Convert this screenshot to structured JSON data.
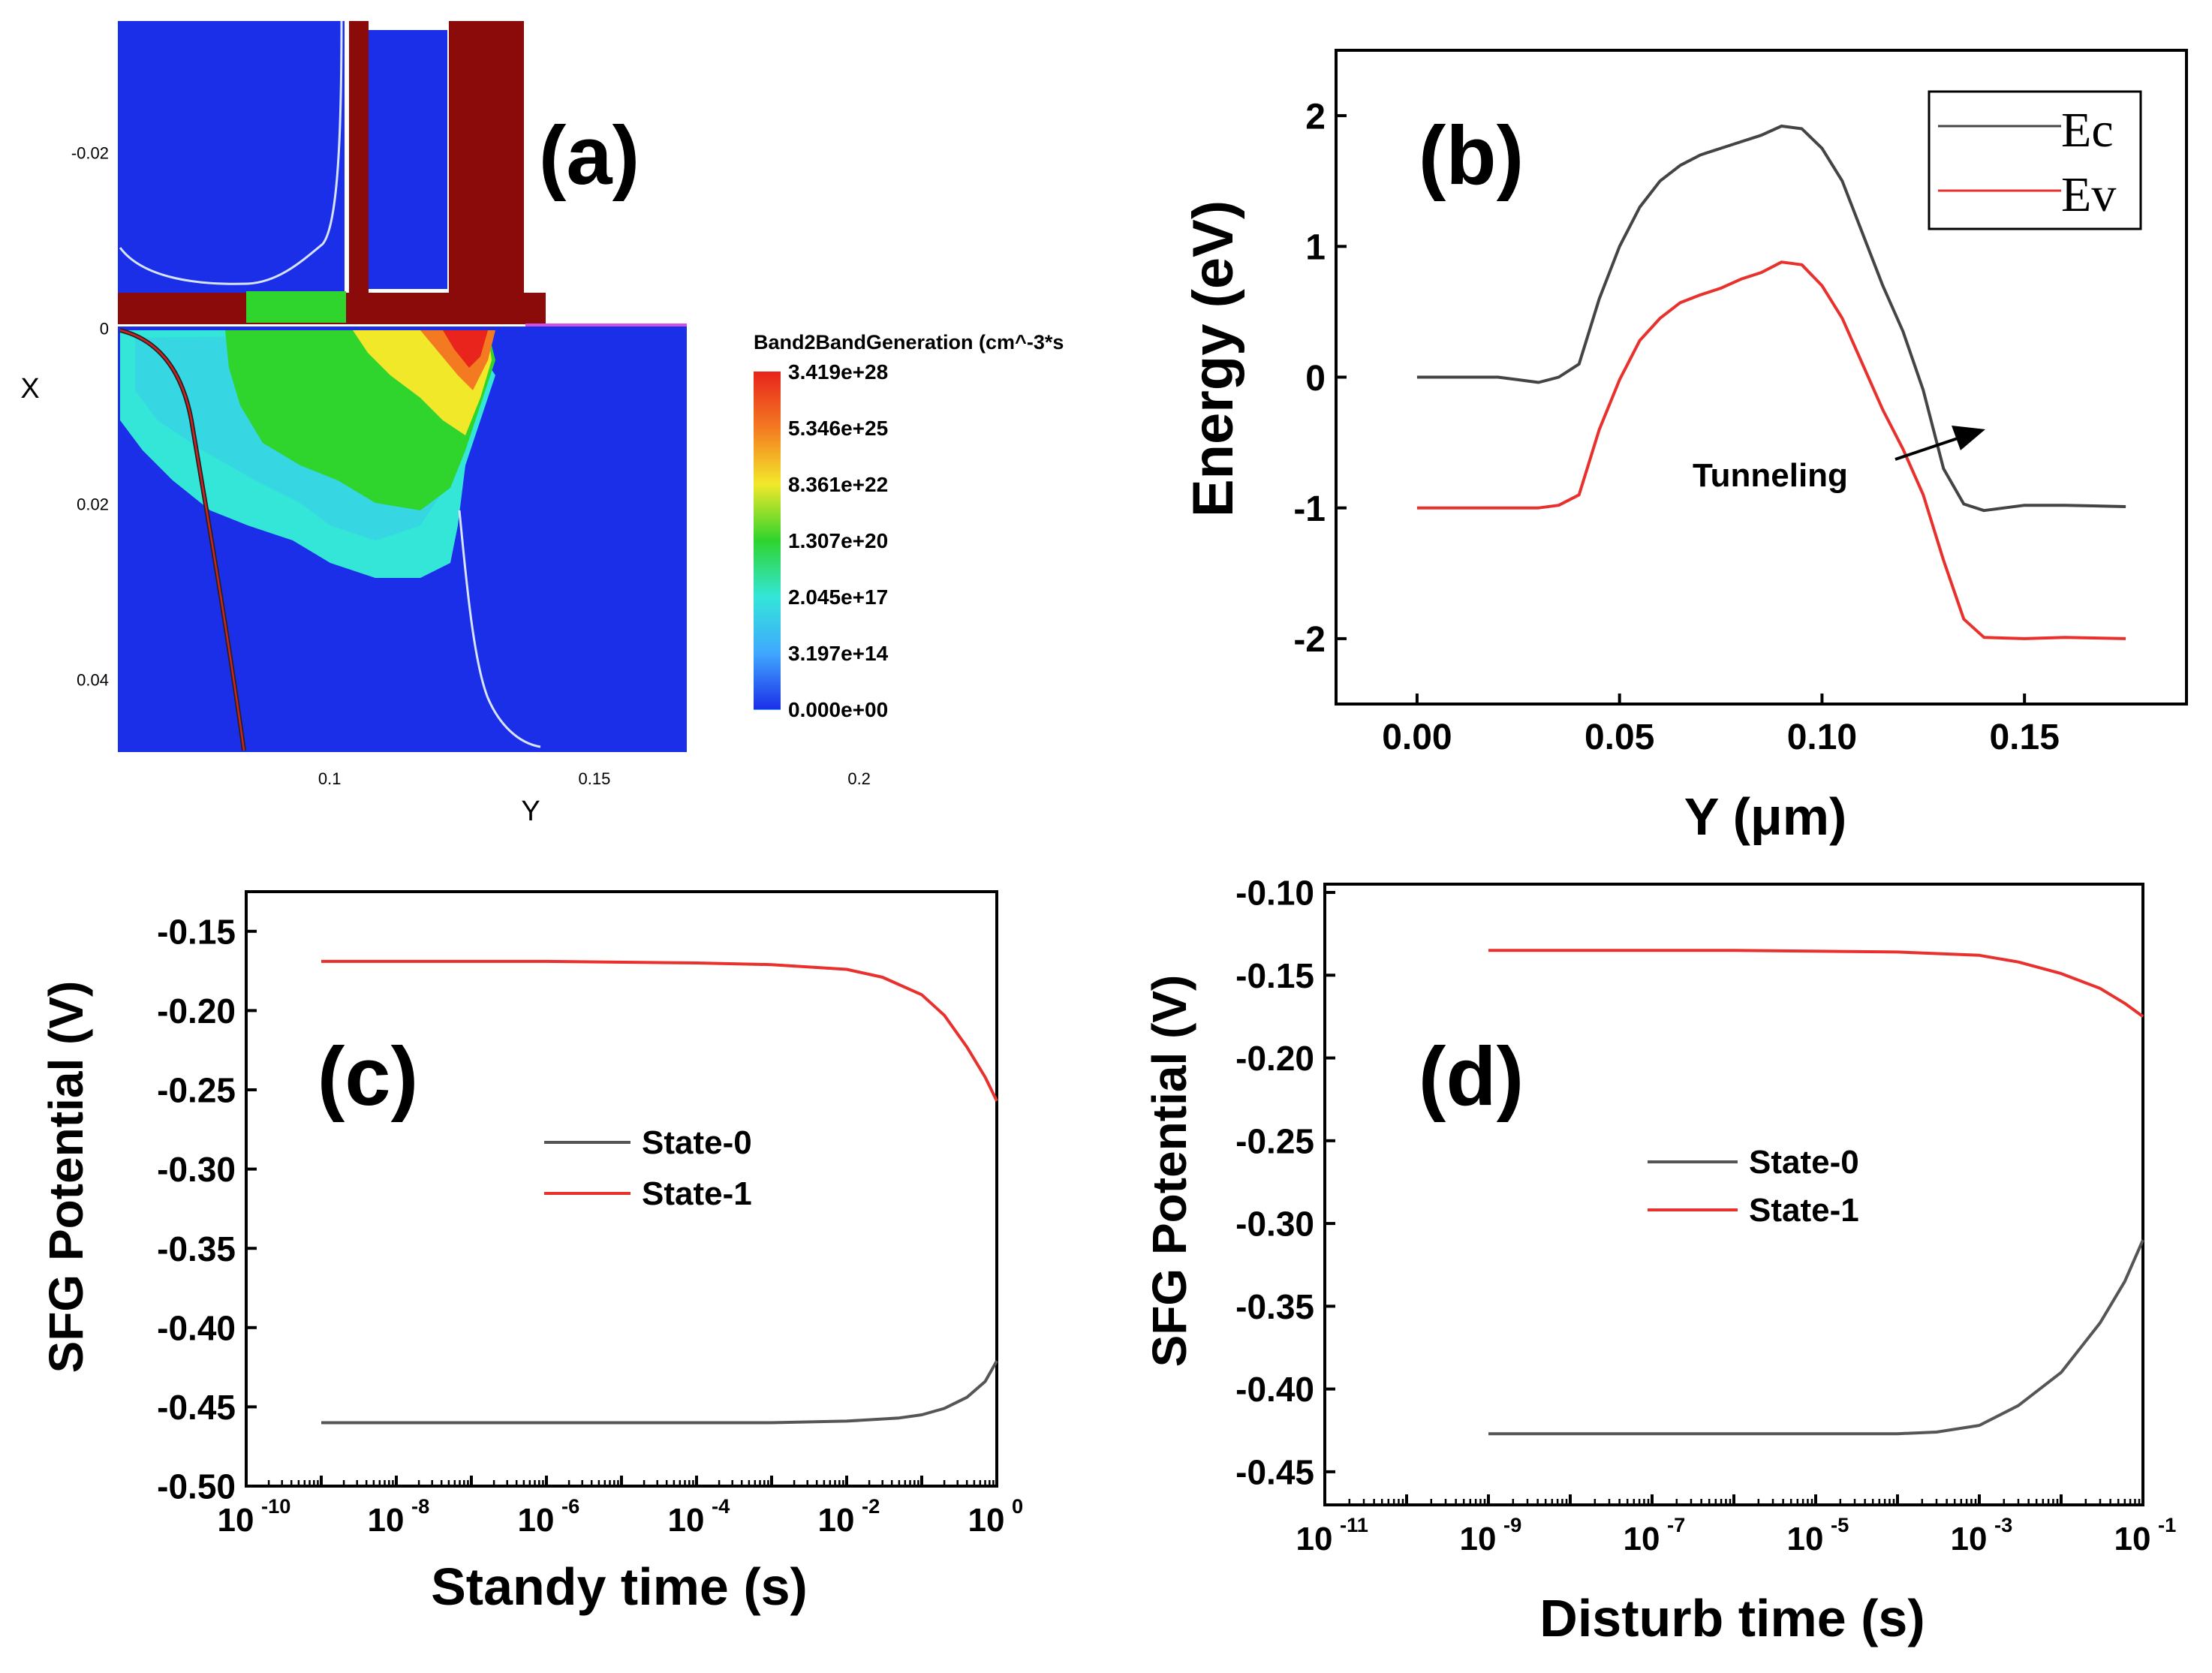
{
  "panels": {
    "a": {
      "label": "(a)"
    },
    "b": {
      "label": "(b)"
    },
    "c": {
      "label": "(c)"
    },
    "d": {
      "label": "(d)"
    }
  },
  "chart_data": [
    {
      "panel": "a",
      "type": "heatmap",
      "xlabel": "Y",
      "ylabel": "X",
      "x_ticks": [
        0.1,
        0.15,
        0.2
      ],
      "y_ticks": [
        -0.02,
        0,
        0.02,
        0.04
      ],
      "xlim": [
        0.06,
        0.225
      ],
      "ylim": [
        -0.035,
        0.0485
      ],
      "colorbar": {
        "title": "Band2BandGeneration (cm^-3*s",
        "labels": [
          "3.419e+28",
          "5.346e+25",
          "8.361e+22",
          "1.307e+20",
          "2.045e+17",
          "3.197e+14",
          "0.000e+00"
        ],
        "colors": [
          "#e8241c",
          "#f47a22",
          "#f2e82a",
          "#2fd42d",
          "#33e6d8",
          "#40a8ff",
          "#1c2fe8"
        ]
      }
    },
    {
      "panel": "b",
      "type": "line",
      "xlabel": "Y (μm)",
      "ylabel": "Energy (eV)",
      "xlim": [
        -0.02,
        0.19
      ],
      "ylim": [
        -2.5,
        2.5
      ],
      "x_ticks": [
        "0.00",
        "0.05",
        "0.10",
        "0.15"
      ],
      "y_ticks": [
        2,
        1,
        0,
        -1,
        -2
      ],
      "legend_position": "top-right",
      "annotation": "Tunneling",
      "series": [
        {
          "name": "Ec",
          "color": "#444444",
          "x": [
            0.0,
            0.02,
            0.03,
            0.035,
            0.04,
            0.045,
            0.05,
            0.055,
            0.06,
            0.065,
            0.07,
            0.075,
            0.08,
            0.085,
            0.09,
            0.095,
            0.1,
            0.105,
            0.11,
            0.115,
            0.12,
            0.125,
            0.13,
            0.135,
            0.14,
            0.15,
            0.16,
            0.175
          ],
          "y": [
            0.0,
            0.0,
            -0.04,
            0.0,
            0.1,
            0.6,
            1.0,
            1.3,
            1.5,
            1.62,
            1.7,
            1.75,
            1.8,
            1.85,
            1.92,
            1.9,
            1.75,
            1.5,
            1.1,
            0.7,
            0.35,
            -0.1,
            -0.7,
            -0.97,
            -1.02,
            -0.98,
            -0.98,
            -0.99
          ]
        },
        {
          "name": "Ev",
          "color": "#e8302c",
          "x": [
            0.0,
            0.02,
            0.03,
            0.035,
            0.04,
            0.045,
            0.05,
            0.055,
            0.06,
            0.065,
            0.07,
            0.075,
            0.08,
            0.085,
            0.09,
            0.095,
            0.1,
            0.105,
            0.11,
            0.115,
            0.12,
            0.125,
            0.13,
            0.135,
            0.14,
            0.15,
            0.16,
            0.175
          ],
          "y": [
            -1.0,
            -1.0,
            -1.0,
            -0.98,
            -0.9,
            -0.4,
            -0.02,
            0.28,
            0.45,
            0.57,
            0.63,
            0.68,
            0.75,
            0.8,
            0.88,
            0.86,
            0.7,
            0.45,
            0.1,
            -0.25,
            -0.55,
            -0.9,
            -1.4,
            -1.85,
            -1.99,
            -2.0,
            -1.99,
            -2.0
          ]
        }
      ]
    },
    {
      "panel": "c",
      "type": "line",
      "xlabel": "Standy time (s)",
      "ylabel": "SFG Potential (V)",
      "x_scale": "log",
      "xlim": [
        1e-10,
        1
      ],
      "ylim": [
        -0.5,
        -0.125
      ],
      "x_ticks": [
        "10",
        "10",
        "10",
        "10",
        "10",
        "10"
      ],
      "x_tick_exponents": [
        "-10",
        "-8",
        "-6",
        "-4",
        "-2",
        "0"
      ],
      "y_ticks": [
        "-0.15",
        "-0.20",
        "-0.25",
        "-0.30",
        "-0.35",
        "-0.40",
        "-0.45",
        "-0.50"
      ],
      "legend_position": "center",
      "series": [
        {
          "name": "State-0",
          "color": "#555555",
          "x": [
            1e-09,
            1e-06,
            0.001,
            0.01,
            0.05,
            0.1,
            0.2,
            0.4,
            0.7,
            1.0
          ],
          "y": [
            -0.46,
            -0.46,
            -0.46,
            -0.459,
            -0.457,
            -0.455,
            -0.451,
            -0.444,
            -0.434,
            -0.421
          ]
        },
        {
          "name": "State-1",
          "color": "#e8302c",
          "x": [
            1e-09,
            1e-06,
            0.0001,
            0.001,
            0.01,
            0.03,
            0.1,
            0.2,
            0.4,
            0.7,
            1.0
          ],
          "y": [
            -0.169,
            -0.169,
            -0.17,
            -0.171,
            -0.174,
            -0.179,
            -0.19,
            -0.203,
            -0.223,
            -0.242,
            -0.257
          ]
        }
      ]
    },
    {
      "panel": "d",
      "type": "line",
      "xlabel": "Disturb time (s)",
      "ylabel": "SFG Potential (V)",
      "x_scale": "log",
      "xlim": [
        1e-11,
        0.1
      ],
      "ylim": [
        -0.47,
        -0.095
      ],
      "x_ticks": [
        "10",
        "10",
        "10",
        "10",
        "10",
        "10"
      ],
      "x_tick_exponents": [
        "-11",
        "-9",
        "-7",
        "-5",
        "-3",
        "-1"
      ],
      "y_ticks": [
        "-0.10",
        "-0.15",
        "-0.20",
        "-0.25",
        "-0.30",
        "-0.35",
        "-0.40",
        "-0.45"
      ],
      "legend_position": "center",
      "series": [
        {
          "name": "State-0",
          "color": "#555555",
          "x": [
            1e-09,
            1e-06,
            0.0001,
            0.0003,
            0.001,
            0.003,
            0.01,
            0.03,
            0.06,
            0.1
          ],
          "y": [
            -0.427,
            -0.427,
            -0.427,
            -0.426,
            -0.422,
            -0.41,
            -0.39,
            -0.36,
            -0.335,
            -0.31
          ]
        },
        {
          "name": "State-1",
          "color": "#e8302c",
          "x": [
            1e-09,
            1e-06,
            0.0001,
            0.001,
            0.003,
            0.01,
            0.03,
            0.06,
            0.1
          ],
          "y": [
            -0.135,
            -0.135,
            -0.136,
            -0.138,
            -0.142,
            -0.149,
            -0.158,
            -0.167,
            -0.175
          ]
        }
      ]
    }
  ]
}
